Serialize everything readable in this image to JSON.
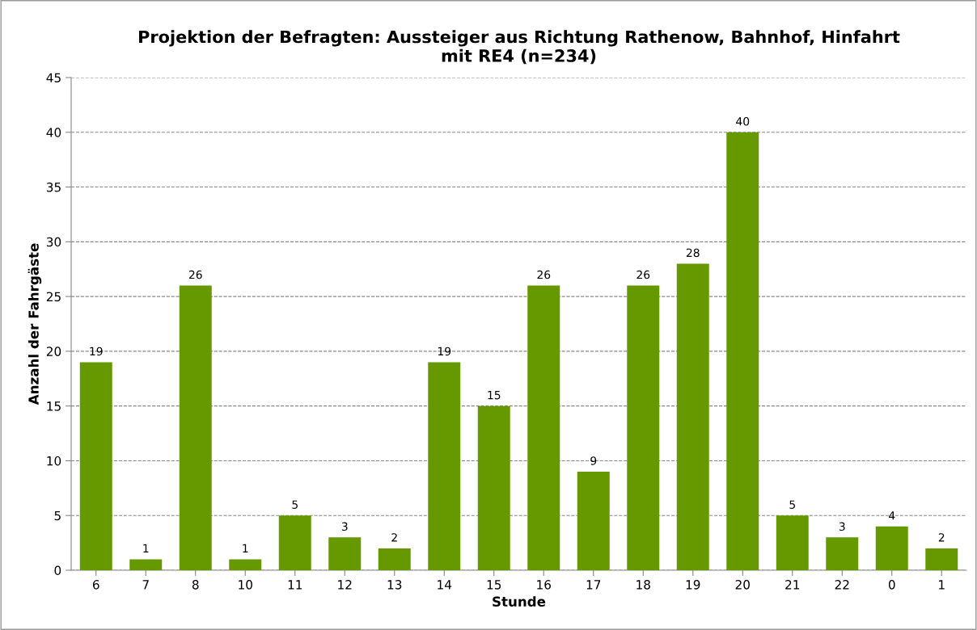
{
  "chart_data": {
    "type": "bar",
    "title": "Projektion der Befragten: Aussteiger aus Richtung Rathenow, Bahnhof, Hinfahrt\nmit RE4 (n=234)",
    "xlabel": "Stunde",
    "ylabel": "Anzahl der Fahrgäste",
    "categories": [
      "6",
      "7",
      "8",
      "10",
      "11",
      "12",
      "13",
      "14",
      "15",
      "16",
      "17",
      "18",
      "19",
      "20",
      "21",
      "22",
      "0",
      "1"
    ],
    "values": [
      19,
      1,
      26,
      1,
      5,
      3,
      2,
      19,
      15,
      26,
      9,
      26,
      28,
      40,
      5,
      3,
      4,
      2
    ],
    "color": "#669900",
    "ylim": [
      0,
      45
    ],
    "yticks": [
      0,
      5,
      10,
      15,
      20,
      25,
      30,
      35,
      40,
      45
    ],
    "grid": "y",
    "data_labels": true
  }
}
